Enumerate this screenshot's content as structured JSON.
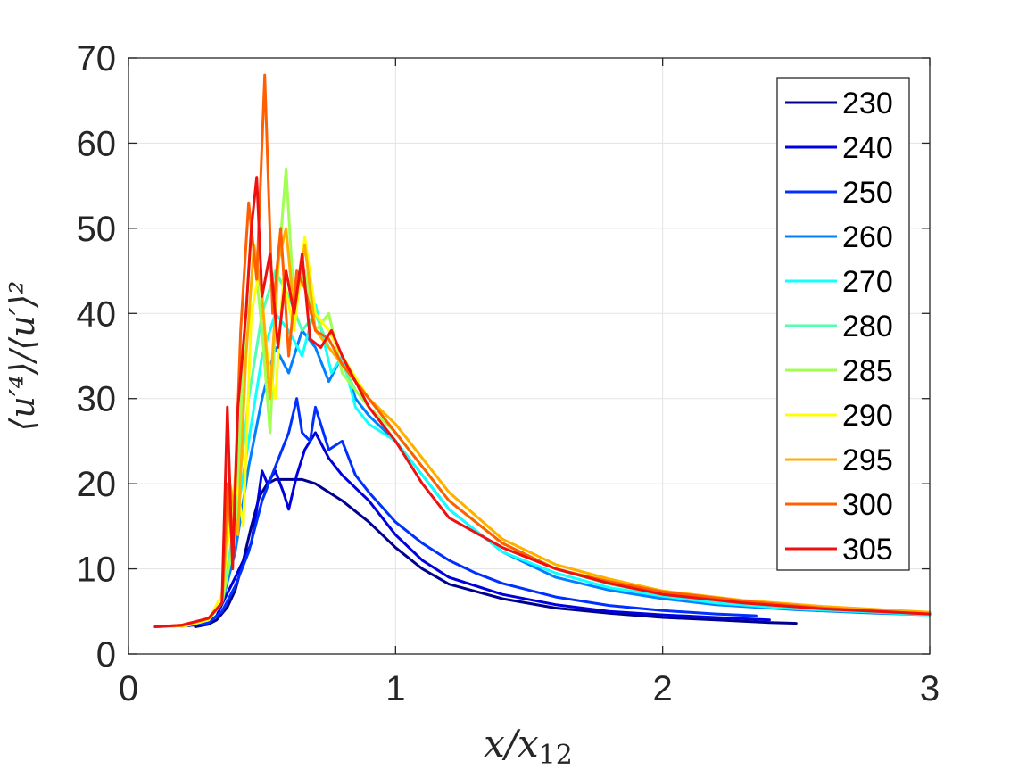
{
  "chart_data": {
    "type": "line",
    "xlabel": "x/x12",
    "ylabel": "⟨u′⁴⟩/⟨u′⟩²",
    "xlim": [
      0,
      3
    ],
    "ylim": [
      0,
      70
    ],
    "x_ticks": [
      "0",
      "1",
      "2",
      "3"
    ],
    "y_ticks": [
      "0",
      "10",
      "20",
      "30",
      "40",
      "50",
      "60",
      "70"
    ],
    "grid": true,
    "legend_position": "top-right",
    "series": [
      {
        "name": "230",
        "color": "#00008f",
        "x": [
          0.25,
          0.3,
          0.33,
          0.37,
          0.4,
          0.43,
          0.46,
          0.49,
          0.52,
          0.55,
          0.6,
          0.65,
          0.7,
          0.75,
          0.8,
          0.9,
          1.0,
          1.1,
          1.2,
          1.4,
          1.6,
          1.8,
          2.0,
          2.2,
          2.4,
          2.5
        ],
        "y": [
          3.2,
          3.5,
          4.0,
          5.5,
          7.5,
          11,
          15,
          18.5,
          20,
          20.5,
          20.5,
          20.5,
          20,
          19,
          18,
          15.5,
          12.5,
          10,
          8.2,
          6.5,
          5.4,
          4.8,
          4.3,
          4.0,
          3.7,
          3.6
        ]
      },
      {
        "name": "240",
        "color": "#0000df",
        "x": [
          0.22,
          0.3,
          0.33,
          0.36,
          0.4,
          0.43,
          0.46,
          0.48,
          0.5,
          0.52,
          0.55,
          0.58,
          0.6,
          0.63,
          0.66,
          0.7,
          0.75,
          0.8,
          0.9,
          1.0,
          1.1,
          1.2,
          1.4,
          1.6,
          1.8,
          2.0,
          2.2,
          2.4
        ],
        "y": [
          3.3,
          3.6,
          4.5,
          6.5,
          9,
          11,
          13,
          17,
          21.5,
          20,
          21.5,
          19,
          17,
          21,
          24,
          26,
          23,
          21,
          18,
          14,
          11,
          9,
          7,
          5.8,
          5,
          4.6,
          4.3,
          4.0
        ]
      },
      {
        "name": "250",
        "color": "#0030ff",
        "x": [
          0.22,
          0.3,
          0.35,
          0.4,
          0.45,
          0.5,
          0.55,
          0.6,
          0.63,
          0.65,
          0.68,
          0.7,
          0.75,
          0.8,
          0.85,
          0.9,
          1.0,
          1.1,
          1.2,
          1.3,
          1.4,
          1.6,
          1.8,
          2.0,
          2.2,
          2.35
        ],
        "y": [
          3.3,
          3.7,
          5,
          8,
          12,
          18,
          22,
          26,
          30,
          26,
          25,
          29,
          24,
          25,
          21,
          19,
          15.5,
          13,
          11,
          9.5,
          8.3,
          6.7,
          5.7,
          5.1,
          4.7,
          4.5
        ]
      },
      {
        "name": "260",
        "color": "#0080ff",
        "x": [
          0.2,
          0.3,
          0.35,
          0.4,
          0.45,
          0.5,
          0.55,
          0.6,
          0.65,
          0.7,
          0.75,
          0.8,
          0.85,
          0.9,
          1.0,
          1.1,
          1.2,
          1.4,
          1.6,
          1.8,
          2.0,
          2.2,
          2.5,
          2.8,
          3.0
        ],
        "y": [
          3.2,
          4,
          6,
          12,
          22,
          30,
          36,
          33,
          38,
          36,
          32,
          35,
          30,
          28,
          25,
          21,
          17,
          12,
          9,
          7.5,
          6.5,
          5.8,
          5.2,
          4.8,
          4.6
        ]
      },
      {
        "name": "270",
        "color": "#10ffff",
        "x": [
          0.2,
          0.3,
          0.35,
          0.4,
          0.45,
          0.5,
          0.55,
          0.6,
          0.65,
          0.7,
          0.73,
          0.76,
          0.8,
          0.85,
          0.9,
          1.0,
          1.1,
          1.2,
          1.4,
          1.6,
          1.8,
          2.0,
          2.2,
          2.5,
          2.8,
          3.0
        ],
        "y": [
          3.2,
          4,
          6,
          15,
          25,
          35,
          40,
          38,
          35,
          41,
          37,
          33,
          35,
          29,
          27,
          25,
          21,
          17,
          12,
          9.5,
          7.8,
          6.8,
          6,
          5.3,
          4.9,
          4.6
        ]
      },
      {
        "name": "280",
        "color": "#50ffaf",
        "x": [
          0.2,
          0.3,
          0.35,
          0.4,
          0.45,
          0.5,
          0.55,
          0.6,
          0.65,
          0.7,
          0.75,
          0.8,
          0.85,
          0.9,
          1.0,
          1.1,
          1.2,
          1.4,
          1.6,
          1.8,
          2.0,
          2.3,
          2.6,
          3.0
        ],
        "y": [
          3.2,
          4,
          6,
          16,
          30,
          40,
          45,
          42,
          38,
          40,
          36,
          34,
          31,
          29,
          26,
          22,
          18,
          13,
          10,
          8.2,
          7,
          6,
          5.3,
          4.7
        ]
      },
      {
        "name": "285",
        "color": "#a0ff50",
        "x": [
          0.2,
          0.3,
          0.35,
          0.4,
          0.43,
          0.46,
          0.5,
          0.53,
          0.56,
          0.59,
          0.62,
          0.66,
          0.7,
          0.75,
          0.8,
          0.9,
          1.0,
          1.1,
          1.2,
          1.4,
          1.6,
          1.8,
          2.0,
          2.3,
          2.6,
          3.0
        ],
        "y": [
          3.2,
          4,
          6,
          14,
          35,
          50,
          38,
          26,
          45,
          57,
          41,
          45,
          38,
          40,
          33,
          29,
          26,
          22,
          18,
          13,
          10,
          8.5,
          7.2,
          6.2,
          5.4,
          4.8
        ]
      },
      {
        "name": "290",
        "color": "#ffff00",
        "x": [
          0.2,
          0.3,
          0.35,
          0.4,
          0.43,
          0.46,
          0.49,
          0.52,
          0.55,
          0.58,
          0.62,
          0.66,
          0.7,
          0.75,
          0.8,
          0.9,
          1.0,
          1.1,
          1.2,
          1.4,
          1.6,
          1.8,
          2.0,
          2.3,
          2.6,
          3.0
        ],
        "y": [
          3.2,
          4,
          7,
          21,
          15,
          40,
          45,
          35,
          30,
          44,
          38,
          49,
          40,
          38,
          35,
          30,
          27,
          23,
          19,
          13.5,
          10.5,
          8.8,
          7.4,
          6.3,
          5.5,
          4.9
        ]
      },
      {
        "name": "295",
        "color": "#ffaf00",
        "x": [
          0.1,
          0.2,
          0.3,
          0.35,
          0.38,
          0.41,
          0.44,
          0.47,
          0.5,
          0.53,
          0.56,
          0.59,
          0.62,
          0.66,
          0.7,
          0.75,
          0.8,
          0.9,
          1.0,
          1.1,
          1.2,
          1.4,
          1.6,
          1.8,
          2.0,
          2.3,
          2.6,
          3.0
        ],
        "y": [
          3.2,
          3.3,
          4.2,
          6,
          20,
          14,
          35,
          48,
          42,
          30,
          46,
          50,
          40,
          48,
          38,
          36,
          34,
          30,
          27,
          23,
          19,
          13.5,
          10.5,
          8.8,
          7.4,
          6.3,
          5.6,
          4.9
        ]
      },
      {
        "name": "300",
        "color": "#ff5f00",
        "x": [
          0.1,
          0.2,
          0.3,
          0.35,
          0.37,
          0.39,
          0.42,
          0.45,
          0.48,
          0.51,
          0.54,
          0.57,
          0.6,
          0.63,
          0.66,
          0.7,
          0.75,
          0.8,
          0.9,
          1.0,
          1.1,
          1.2,
          1.4,
          1.6,
          1.8,
          2.0,
          2.3,
          2.6,
          3.0
        ],
        "y": [
          3.2,
          3.4,
          4.2,
          6,
          20,
          12,
          38,
          53,
          44,
          68,
          40,
          50,
          35,
          45,
          43,
          38,
          37,
          34,
          30,
          26,
          22,
          18,
          13,
          10,
          8.5,
          7.3,
          6.2,
          5.4,
          4.7
        ]
      },
      {
        "name": "305",
        "color": "#ef1010",
        "x": [
          0.1,
          0.2,
          0.3,
          0.35,
          0.37,
          0.39,
          0.41,
          0.44,
          0.46,
          0.48,
          0.5,
          0.53,
          0.56,
          0.59,
          0.62,
          0.65,
          0.68,
          0.72,
          0.76,
          0.8,
          0.85,
          0.9,
          1.0,
          1.1,
          1.2,
          1.4,
          1.6,
          1.8,
          2.0,
          2.3,
          2.6,
          3.0
        ],
        "y": [
          3.2,
          3.4,
          4.2,
          6,
          29,
          10,
          29,
          40,
          50,
          56,
          42,
          47,
          36,
          45,
          40,
          47,
          37,
          36,
          38,
          35,
          32,
          29,
          25,
          20,
          16,
          12.5,
          10,
          8.3,
          7,
          6,
          5.3,
          4.7
        ]
      }
    ]
  }
}
